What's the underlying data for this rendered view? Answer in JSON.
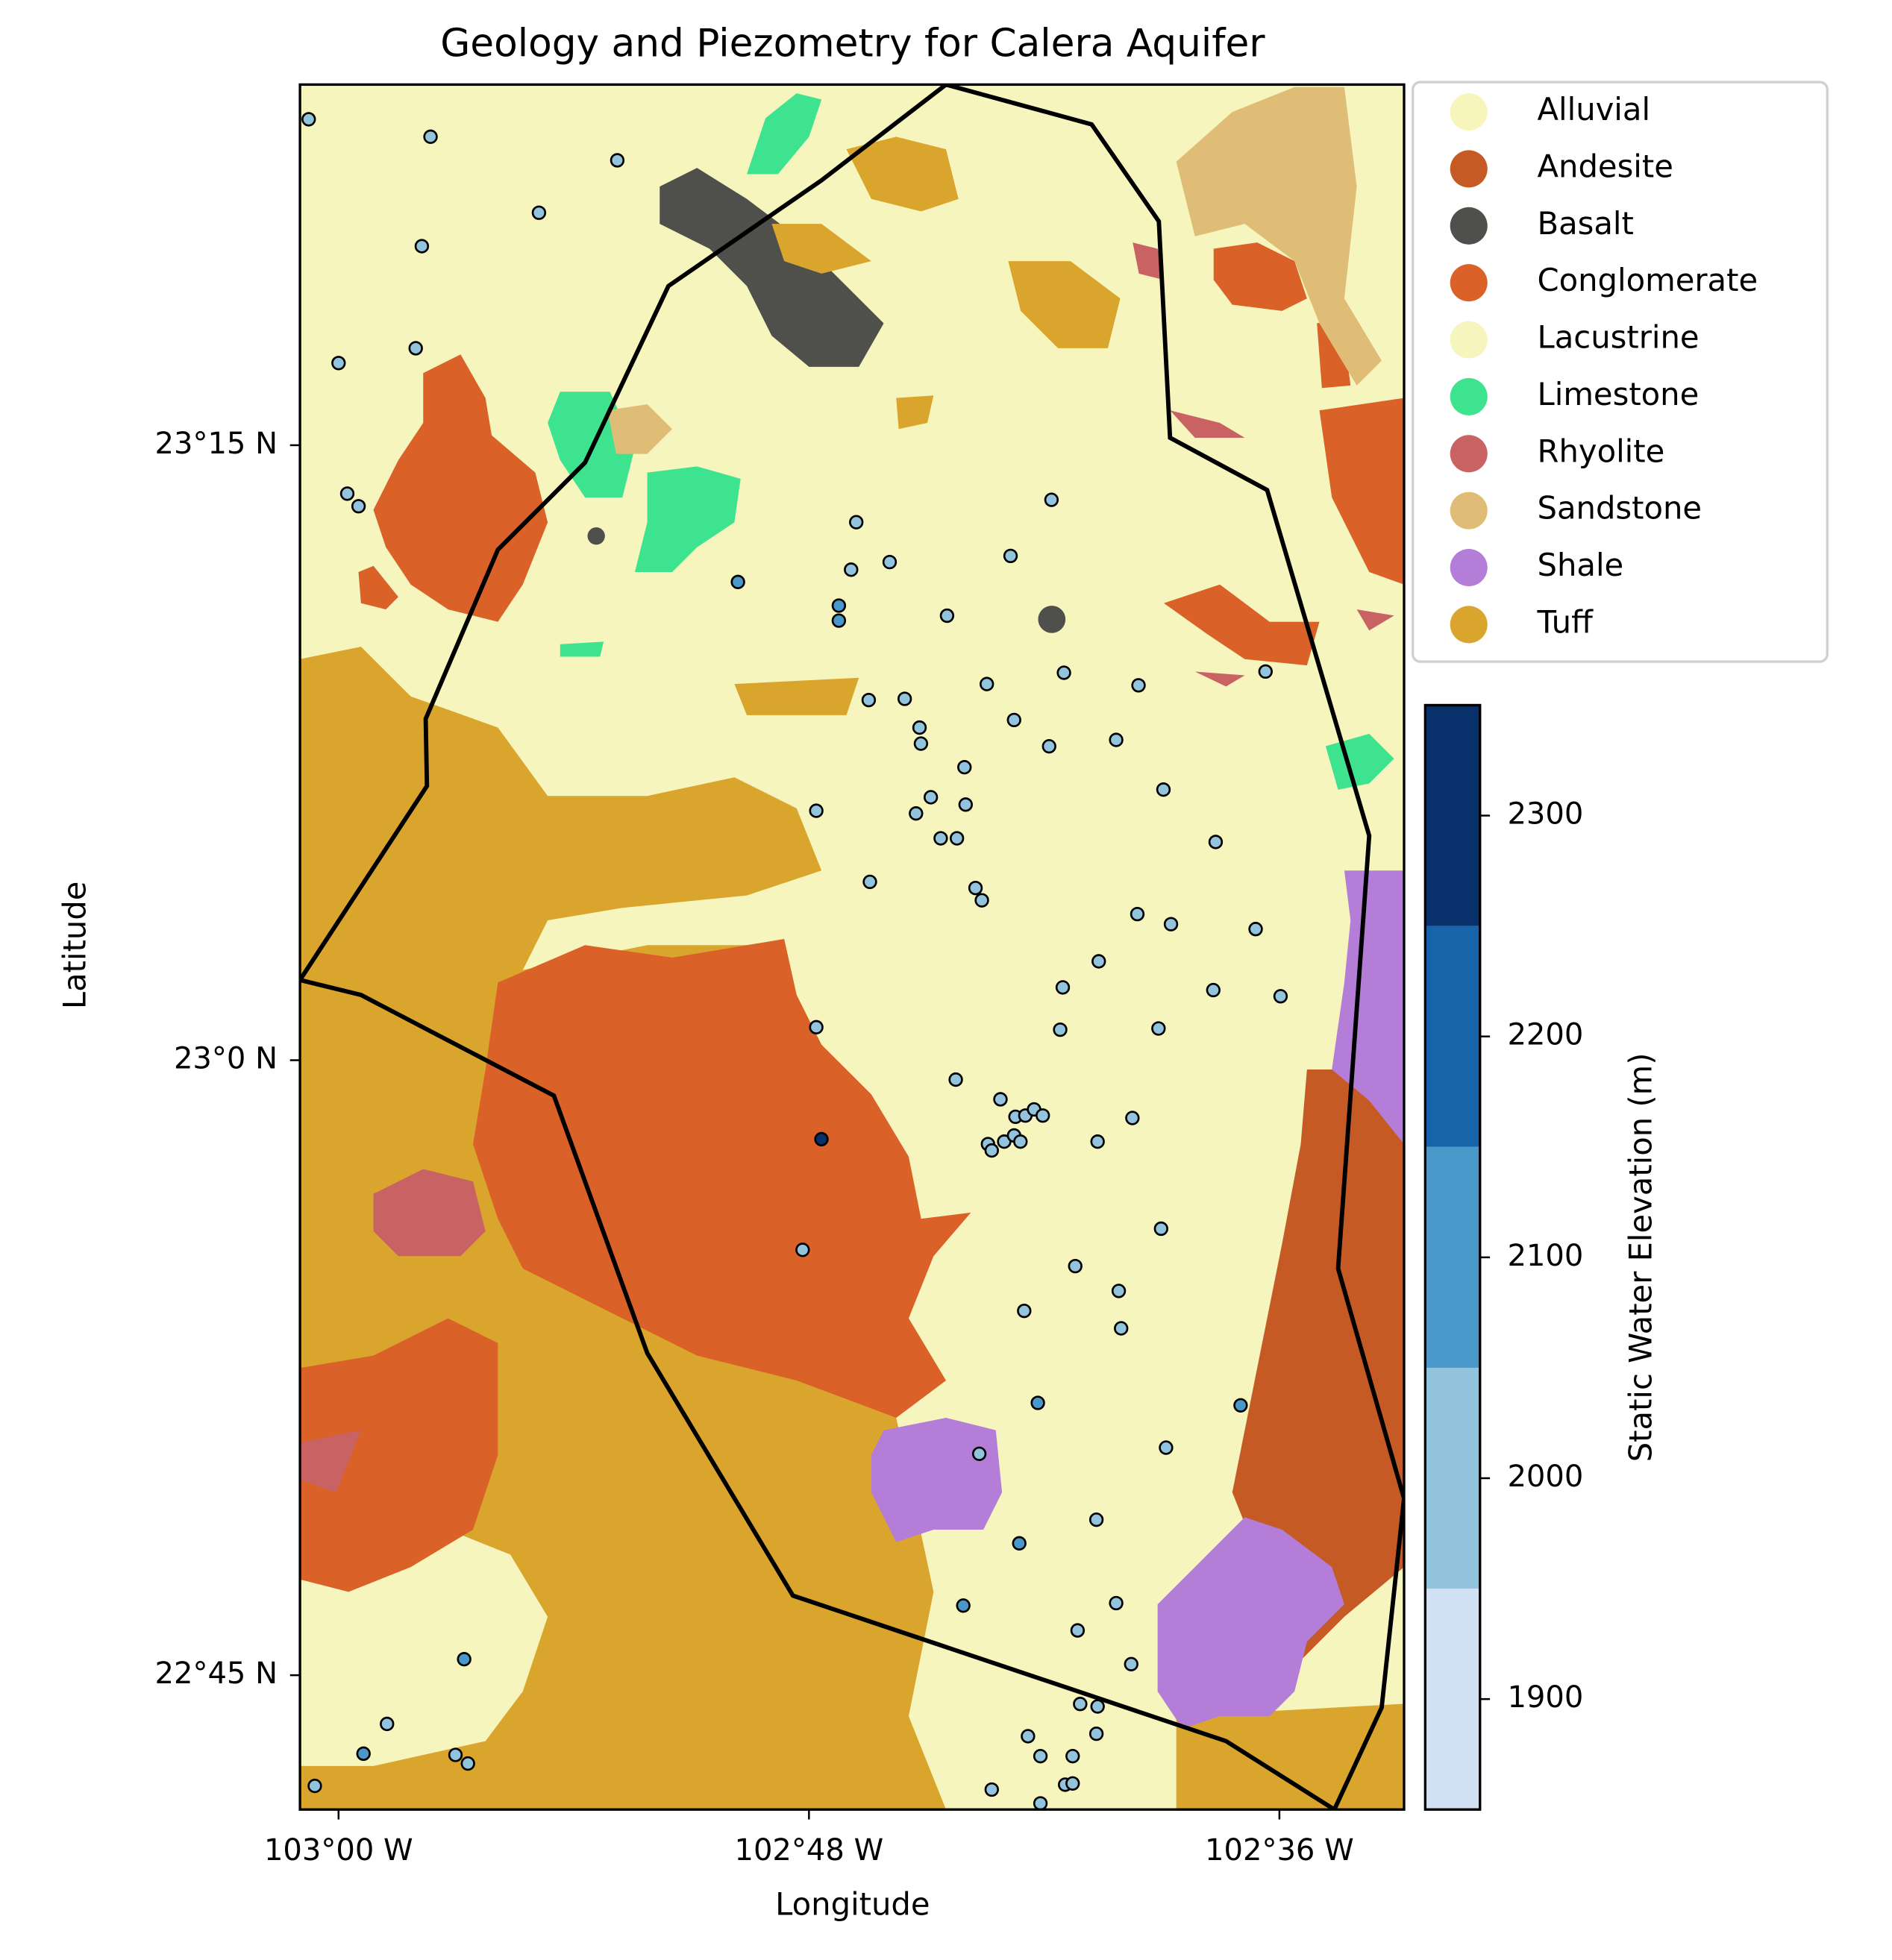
{
  "chart_data": {
    "type": "map",
    "title": "Geology and Piezometry for Calera Aquifer",
    "x_label": "Longitude",
    "y_label": "Latitude",
    "xlim": [
      -103.0164,
      -102.547
    ],
    "ylim": [
      22.6954,
      23.3966
    ],
    "xticks": [
      {
        "value": -103.0,
        "label": "103°00 W"
      },
      {
        "value": -102.8,
        "label": "102°48 W"
      },
      {
        "value": -102.6,
        "label": "102°36 W"
      }
    ],
    "yticks": [
      {
        "value": 22.75,
        "label": "22°45 N"
      },
      {
        "value": 23.0,
        "label": "23°0 N"
      },
      {
        "value": 23.25,
        "label": "23°15 N"
      }
    ],
    "units": [
      {
        "name": "Alluvial",
        "color": "#f7f5bc"
      },
      {
        "name": "Andesite",
        "color": "#c65a25"
      },
      {
        "name": "Basalt",
        "color": "#4f504c"
      },
      {
        "name": "Conglomerate",
        "color": "#da6127"
      },
      {
        "name": "Lacustrine",
        "color": "#f6f5bd"
      },
      {
        "name": "Limestone",
        "color": "#3ee38f"
      },
      {
        "name": "Rhyolite",
        "color": "#c96262"
      },
      {
        "name": "Sandstone",
        "color": "#e0bd76"
      },
      {
        "name": "Shale",
        "color": "#b47ed8"
      },
      {
        "name": "Tuff",
        "color": "#daa52c"
      }
    ],
    "colorbar": {
      "label": "Static Water Elevation (m)",
      "levels": [
        1850,
        1950,
        2050,
        2150,
        2250,
        2350
      ],
      "colors": [
        "#cfe1f2",
        "#93c4de",
        "#4a98c9",
        "#1764ab",
        "#08306b"
      ],
      "yticks": [
        1900,
        2000,
        2100,
        2200,
        2300
      ]
    },
    "wells": {
      "lon": [
        -103.0127,
        -102.9609,
        -102.8815,
        -102.9148,
        -102.9646,
        -102.9672,
        -103.0,
        -102.9963,
        -102.9915,
        -102.8302,
        -102.7799,
        -102.7657,
        -102.7821,
        -102.7873,
        -102.7873,
        -102.7413,
        -102.7143,
        -102.6969,
        -102.7244,
        -102.6916,
        -102.6599,
        -102.6059,
        -102.7746,
        -102.7593,
        -102.753,
        -102.7524,
        -102.7128,
        -102.6979,
        -102.6694,
        -102.7339,
        -102.7969,
        -102.7545,
        -102.7482,
        -102.7334,
        -102.744,
        -102.7371,
        -102.6493,
        -102.6271,
        -102.7741,
        -102.7292,
        -102.7265,
        -102.6604,
        -102.6461,
        -102.6101,
        -102.6768,
        -102.6921,
        -102.6281,
        -102.5995,
        -102.7969,
        -102.6932,
        -102.6514,
        -102.7376,
        -102.7186,
        -102.7122,
        -102.708,
        -102.7043,
        -102.7006,
        -102.7239,
        -102.7223,
        -102.717,
        -102.7128,
        -102.7101,
        -102.6773,
        -102.6625,
        -102.7947,
        -102.8027,
        -102.6503,
        -102.6868,
        -102.6683,
        -102.7085,
        -102.6673,
        -102.7027,
        -102.6165,
        -102.6482,
        -102.7276,
        -102.6778,
        -102.7106,
        -102.6694,
        -102.7344,
        -102.6858,
        -102.663,
        -102.9466,
        -102.9794,
        -102.9894,
        -102.9503,
        -102.945,
        -103.0101,
        -102.7069,
        -102.6847,
        -102.6773,
        -102.6778,
        -102.7016,
        -102.6879,
        -102.6911,
        -102.6879,
        -102.7223,
        -102.7016
      ],
      "lat": [
        23.3825,
        23.3754,
        23.3658,
        23.3445,
        23.3309,
        23.2894,
        23.2834,
        23.2303,
        23.2252,
        23.1944,
        23.2187,
        23.2025,
        23.1994,
        23.1848,
        23.1787,
        23.1807,
        23.205,
        23.2278,
        23.1529,
        23.1575,
        23.1524,
        23.158,
        23.1464,
        23.1469,
        23.1352,
        23.1287,
        23.1383,
        23.1276,
        23.1302,
        23.1191,
        23.1014,
        23.1003,
        23.1069,
        23.1039,
        23.0902,
        23.0902,
        23.11,
        23.0887,
        23.0725,
        23.07,
        23.065,
        23.0594,
        23.0553,
        23.0533,
        23.0402,
        23.0296,
        23.0285,
        23.026,
        23.0134,
        23.0124,
        23.0129,
        22.9921,
        22.9841,
        22.977,
        22.9775,
        22.98,
        22.9775,
        22.9659,
        22.9633,
        22.9669,
        22.9694,
        22.9669,
        22.9669,
        22.9765,
        22.9679,
        22.9229,
        22.9315,
        22.9163,
        22.9062,
        22.8981,
        22.891,
        22.8607,
        22.8597,
        22.8425,
        22.84,
        22.8132,
        22.8036,
        22.7793,
        22.7783,
        22.7682,
        22.7545,
        22.7565,
        22.7302,
        22.7181,
        22.7176,
        22.7141,
        22.705,
        22.7252,
        22.7383,
        22.7373,
        22.7262,
        22.7171,
        22.7171,
        22.7055,
        22.706,
        22.7035,
        22.6979
      ],
      "elevation": [
        2000,
        2000,
        2000,
        2000,
        2000,
        2000,
        2000,
        2000,
        2000,
        2100,
        2000,
        2000,
        2000,
        2100,
        2100,
        2000,
        2000,
        2000,
        2000,
        2000,
        2000,
        2000,
        2000,
        2000,
        2000,
        2000,
        2000,
        2000,
        2000,
        2000,
        2000,
        2000,
        2000,
        2000,
        2000,
        2000,
        2000,
        2000,
        2000,
        2000,
        2000,
        2000,
        2000,
        2000,
        2000,
        2000,
        2000,
        2000,
        2000,
        2000,
        2000,
        2000,
        2000,
        2000,
        2000,
        2000,
        2000,
        2000,
        2000,
        2000,
        2000,
        2000,
        2000,
        2000,
        2300,
        2000,
        2000,
        2000,
        2000,
        2000,
        2000,
        2100,
        2100,
        2000,
        2000,
        2000,
        2100,
        2000,
        2100,
        2000,
        2000,
        2100,
        2000,
        2100,
        2000,
        2000,
        2000,
        2000,
        2000,
        2000,
        2000,
        2000,
        2000,
        2000,
        2000,
        2000,
        2000
      ]
    }
  }
}
